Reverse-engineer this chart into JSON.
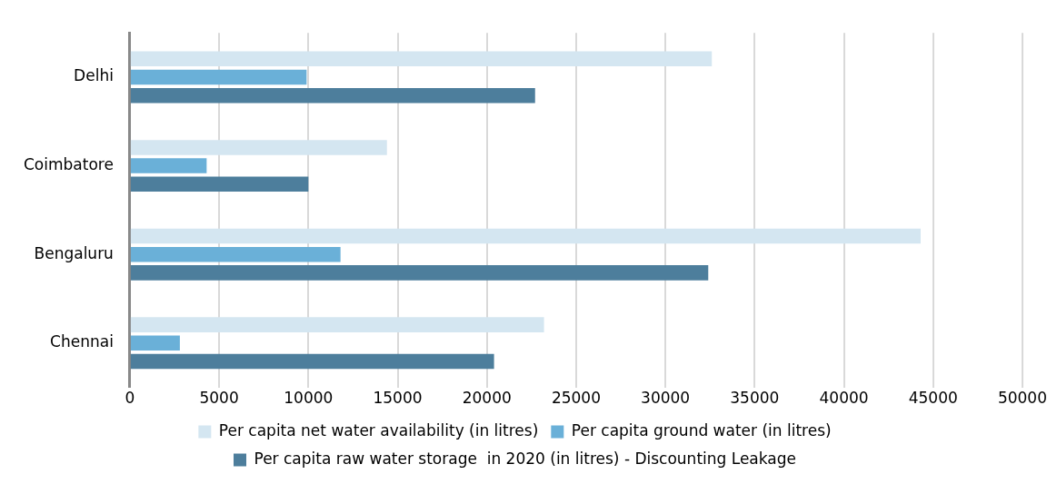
{
  "chart_data": {
    "type": "bar",
    "orientation": "horizontal",
    "categories": [
      "Delhi",
      "Coimbatore",
      "Bengaluru",
      "Chennai"
    ],
    "series": [
      {
        "name": "Per capita net water availability (in litres)",
        "color": "#d4e6f1",
        "values": [
          32600,
          14400,
          44300,
          23200
        ]
      },
      {
        "name": "Per capita ground water (in litres)",
        "color": "#6ab0d8",
        "values": [
          9900,
          4300,
          11800,
          2800
        ]
      },
      {
        "name": "Per capita raw water storage  in 2020 (in litres) - Discounting Leakage",
        "color": "#4d7e9c",
        "values": [
          22700,
          10000,
          32400,
          20400
        ]
      }
    ],
    "xlim": [
      0,
      50000
    ],
    "xticks": [
      0,
      5000,
      10000,
      15000,
      20000,
      25000,
      30000,
      35000,
      40000,
      45000,
      50000
    ],
    "grid": "x",
    "legend": "bottom"
  }
}
